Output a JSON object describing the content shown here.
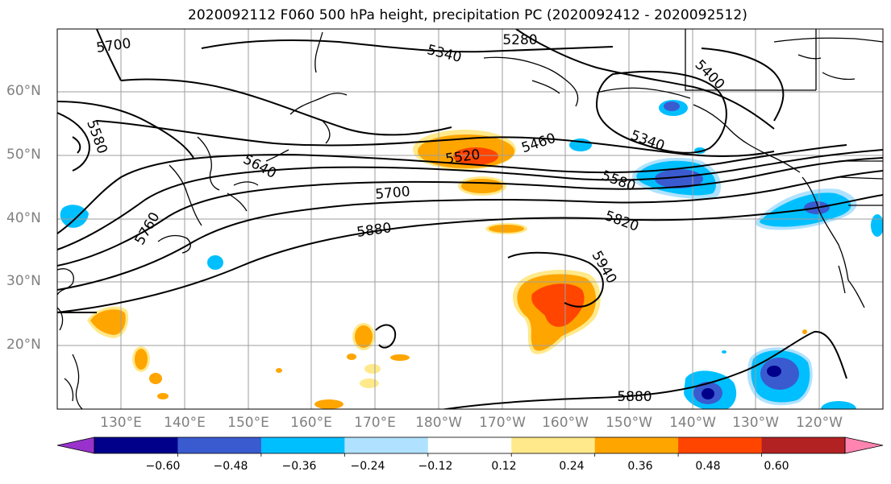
{
  "title": "2020092112 F060 500 hPa height, precipitation PC (2020092412 - 2020092512)",
  "lat_labels": [
    "60°N",
    "50°N",
    "40°N",
    "30°N",
    "20°N"
  ],
  "lon_labels": [
    "130°E",
    "140°E",
    "150°E",
    "160°E",
    "170°E",
    "180°W",
    "170°W",
    "160°W",
    "150°W",
    "140°W",
    "130°W",
    "120°W"
  ],
  "contour_labels": [
    {
      "text": "5700"
    },
    {
      "text": "5280"
    },
    {
      "text": "5340"
    },
    {
      "text": "5400"
    },
    {
      "text": "5580"
    },
    {
      "text": "5640"
    },
    {
      "text": "5520"
    },
    {
      "text": "5460"
    },
    {
      "text": "5340"
    },
    {
      "text": "5580"
    },
    {
      "text": "5700"
    },
    {
      "text": "5820"
    },
    {
      "text": "5760"
    },
    {
      "text": "5880"
    },
    {
      "text": "5940"
    },
    {
      "text": "5880"
    }
  ],
  "colorbar": {
    "colors": [
      "#9932CC",
      "#00008B",
      "#3A5BD0",
      "#00BFFF",
      "#B0E2FF",
      "#FFFFFF",
      "#FFE98A",
      "#FFA500",
      "#FF4500",
      "#B22222",
      "#FF85B0"
    ],
    "tick_labels": [
      "−0.60",
      "−0.48",
      "−0.36",
      "−0.24",
      "−0.12",
      "0.12",
      "0.24",
      "0.36",
      "0.48",
      "0.60"
    ]
  }
}
